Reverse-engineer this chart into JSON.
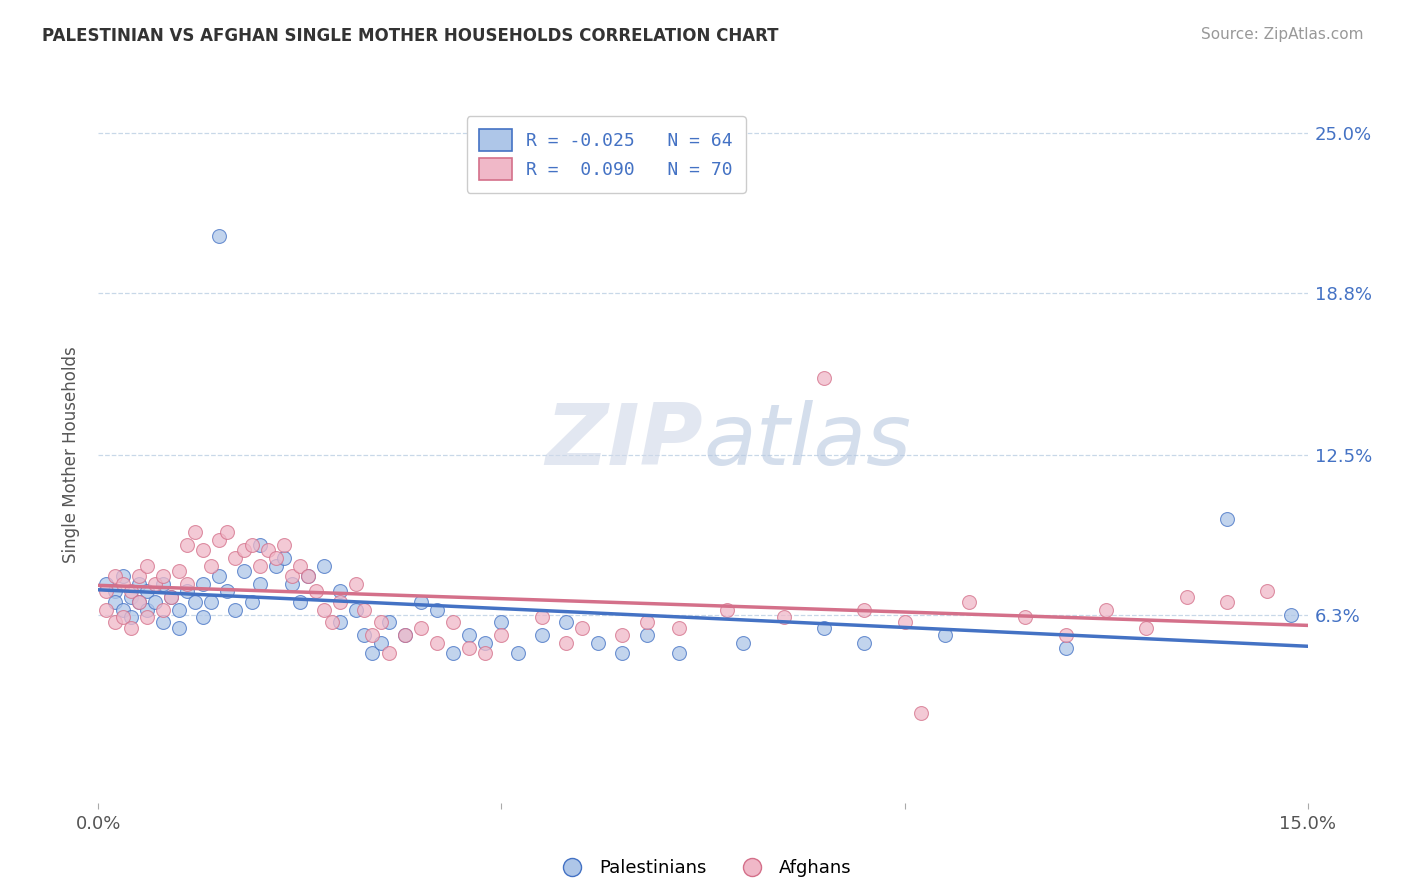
{
  "title": "PALESTINIAN VS AFGHAN SINGLE MOTHER HOUSEHOLDS CORRELATION CHART",
  "source": "Source: ZipAtlas.com",
  "ylabel": "Single Mother Households",
  "xlim": [
    0.0,
    0.15
  ],
  "ylim": [
    -0.01,
    0.26
  ],
  "yticks": [
    0.063,
    0.125,
    0.188,
    0.25
  ],
  "ytick_labels": [
    "6.3%",
    "12.5%",
    "18.8%",
    "25.0%"
  ],
  "xticks": [
    0.0,
    0.05,
    0.1,
    0.15
  ],
  "xtick_labels": [
    "0.0%",
    "",
    "",
    "15.0%"
  ],
  "legend_label_palestinians": "Palestinians",
  "legend_label_afghans": "Afghans",
  "blue_color": "#4472c4",
  "pink_color": "#d4708a",
  "blue_scatter_color": "#aec6e8",
  "pink_scatter_color": "#f0b8c8",
  "blue_R": -0.025,
  "blue_N": 64,
  "pink_R": 0.09,
  "pink_N": 70,
  "blue_points": [
    [
      0.001,
      0.075
    ],
    [
      0.002,
      0.072
    ],
    [
      0.002,
      0.068
    ],
    [
      0.003,
      0.078
    ],
    [
      0.003,
      0.065
    ],
    [
      0.004,
      0.07
    ],
    [
      0.004,
      0.062
    ],
    [
      0.005,
      0.075
    ],
    [
      0.005,
      0.068
    ],
    [
      0.006,
      0.072
    ],
    [
      0.006,
      0.065
    ],
    [
      0.007,
      0.068
    ],
    [
      0.008,
      0.075
    ],
    [
      0.008,
      0.06
    ],
    [
      0.009,
      0.07
    ],
    [
      0.01,
      0.065
    ],
    [
      0.01,
      0.058
    ],
    [
      0.011,
      0.072
    ],
    [
      0.012,
      0.068
    ],
    [
      0.013,
      0.075
    ],
    [
      0.013,
      0.062
    ],
    [
      0.014,
      0.068
    ],
    [
      0.015,
      0.078
    ],
    [
      0.015,
      0.21
    ],
    [
      0.016,
      0.072
    ],
    [
      0.017,
      0.065
    ],
    [
      0.018,
      0.08
    ],
    [
      0.019,
      0.068
    ],
    [
      0.02,
      0.09
    ],
    [
      0.02,
      0.075
    ],
    [
      0.022,
      0.082
    ],
    [
      0.023,
      0.085
    ],
    [
      0.024,
      0.075
    ],
    [
      0.025,
      0.068
    ],
    [
      0.026,
      0.078
    ],
    [
      0.028,
      0.082
    ],
    [
      0.03,
      0.072
    ],
    [
      0.03,
      0.06
    ],
    [
      0.032,
      0.065
    ],
    [
      0.033,
      0.055
    ],
    [
      0.034,
      0.048
    ],
    [
      0.035,
      0.052
    ],
    [
      0.036,
      0.06
    ],
    [
      0.038,
      0.055
    ],
    [
      0.04,
      0.068
    ],
    [
      0.042,
      0.065
    ],
    [
      0.044,
      0.048
    ],
    [
      0.046,
      0.055
    ],
    [
      0.048,
      0.052
    ],
    [
      0.05,
      0.06
    ],
    [
      0.052,
      0.048
    ],
    [
      0.055,
      0.055
    ],
    [
      0.058,
      0.06
    ],
    [
      0.062,
      0.052
    ],
    [
      0.065,
      0.048
    ],
    [
      0.068,
      0.055
    ],
    [
      0.072,
      0.048
    ],
    [
      0.08,
      0.052
    ],
    [
      0.09,
      0.058
    ],
    [
      0.095,
      0.052
    ],
    [
      0.105,
      0.055
    ],
    [
      0.12,
      0.05
    ],
    [
      0.14,
      0.1
    ],
    [
      0.148,
      0.063
    ]
  ],
  "pink_points": [
    [
      0.001,
      0.072
    ],
    [
      0.001,
      0.065
    ],
    [
      0.002,
      0.078
    ],
    [
      0.002,
      0.06
    ],
    [
      0.003,
      0.075
    ],
    [
      0.003,
      0.062
    ],
    [
      0.004,
      0.072
    ],
    [
      0.004,
      0.058
    ],
    [
      0.005,
      0.078
    ],
    [
      0.005,
      0.068
    ],
    [
      0.006,
      0.082
    ],
    [
      0.006,
      0.062
    ],
    [
      0.007,
      0.075
    ],
    [
      0.008,
      0.078
    ],
    [
      0.008,
      0.065
    ],
    [
      0.009,
      0.07
    ],
    [
      0.01,
      0.08
    ],
    [
      0.011,
      0.09
    ],
    [
      0.011,
      0.075
    ],
    [
      0.012,
      0.095
    ],
    [
      0.013,
      0.088
    ],
    [
      0.014,
      0.082
    ],
    [
      0.015,
      0.092
    ],
    [
      0.016,
      0.095
    ],
    [
      0.017,
      0.085
    ],
    [
      0.018,
      0.088
    ],
    [
      0.019,
      0.09
    ],
    [
      0.02,
      0.082
    ],
    [
      0.021,
      0.088
    ],
    [
      0.022,
      0.085
    ],
    [
      0.023,
      0.09
    ],
    [
      0.024,
      0.078
    ],
    [
      0.025,
      0.082
    ],
    [
      0.026,
      0.078
    ],
    [
      0.027,
      0.072
    ],
    [
      0.028,
      0.065
    ],
    [
      0.029,
      0.06
    ],
    [
      0.03,
      0.068
    ],
    [
      0.032,
      0.075
    ],
    [
      0.033,
      0.065
    ],
    [
      0.034,
      0.055
    ],
    [
      0.035,
      0.06
    ],
    [
      0.036,
      0.048
    ],
    [
      0.038,
      0.055
    ],
    [
      0.04,
      0.058
    ],
    [
      0.042,
      0.052
    ],
    [
      0.044,
      0.06
    ],
    [
      0.046,
      0.05
    ],
    [
      0.048,
      0.048
    ],
    [
      0.05,
      0.055
    ],
    [
      0.055,
      0.062
    ],
    [
      0.058,
      0.052
    ],
    [
      0.06,
      0.058
    ],
    [
      0.065,
      0.055
    ],
    [
      0.068,
      0.06
    ],
    [
      0.072,
      0.058
    ],
    [
      0.078,
      0.065
    ],
    [
      0.085,
      0.062
    ],
    [
      0.09,
      0.155
    ],
    [
      0.095,
      0.065
    ],
    [
      0.1,
      0.06
    ],
    [
      0.108,
      0.068
    ],
    [
      0.115,
      0.062
    ],
    [
      0.12,
      0.055
    ],
    [
      0.125,
      0.065
    ],
    [
      0.13,
      0.058
    ],
    [
      0.135,
      0.07
    ],
    [
      0.14,
      0.068
    ],
    [
      0.102,
      0.025
    ],
    [
      0.145,
      0.072
    ]
  ]
}
